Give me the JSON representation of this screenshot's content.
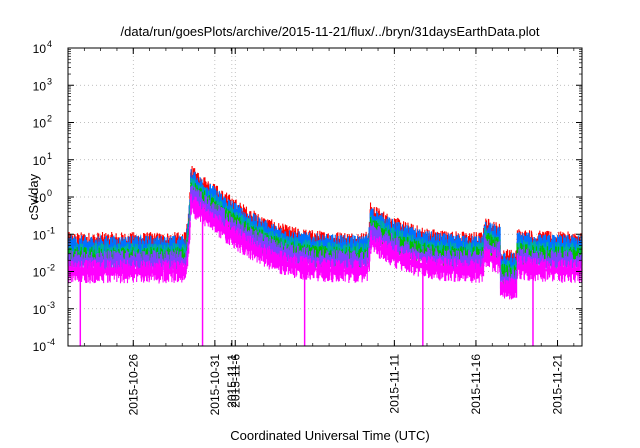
{
  "chart_data": {
    "type": "line",
    "title": "/data/run/goesPlots/archive/2015-11-21/flux/../bryn/31daysEarthData.plot",
    "xlabel": "Coordinated Universal Time (UTC)",
    "ylabel": "cSv/day",
    "yscale": "log",
    "ylim": [
      0.0001,
      10000
    ],
    "xlim": [
      "2015-10-22 00:00",
      "2015-11-22 12:00"
    ],
    "grid": true,
    "legend": "none",
    "x_ticks": [
      "2015-10-26",
      "2015-10-31",
      "2015-11-1",
      "2015-11-6",
      "2015-11-11",
      "2015-11-16",
      "2015-11-21"
    ],
    "y_ticks": [
      "10^-4",
      "10^-3",
      "10^-2",
      "10^-1",
      "10^0",
      "10^1",
      "10^2",
      "10^3",
      "10^4"
    ],
    "events": [
      {
        "date": "2015-10-29 12:00",
        "peak": 3.5
      },
      {
        "date": "2015-11-09 12:00",
        "peak": 0.3
      },
      {
        "date": "2015-11-16 12:00",
        "peak": 0.09
      }
    ],
    "data_gap": [
      "2015-11-17 12:00",
      "2015-11-18 12:00"
    ],
    "dropouts": [
      "2015-10-22 18:00",
      "2015-10-30 06:00",
      "2015-11-05 12:00",
      "2015-11-12 18:00",
      "2015-11-19 12:00"
    ],
    "series": [
      {
        "color": "#ff0000",
        "baseline": 0.055
      },
      {
        "color": "#0072ff",
        "baseline": 0.045
      },
      {
        "color": "#00b0a0",
        "baseline": 0.028
      },
      {
        "color": "#00c000",
        "baseline": 0.022
      },
      {
        "color": "#8040ff",
        "baseline": 0.018
      },
      {
        "color": "#ff00ff",
        "baseline": 0.01
      }
    ]
  }
}
